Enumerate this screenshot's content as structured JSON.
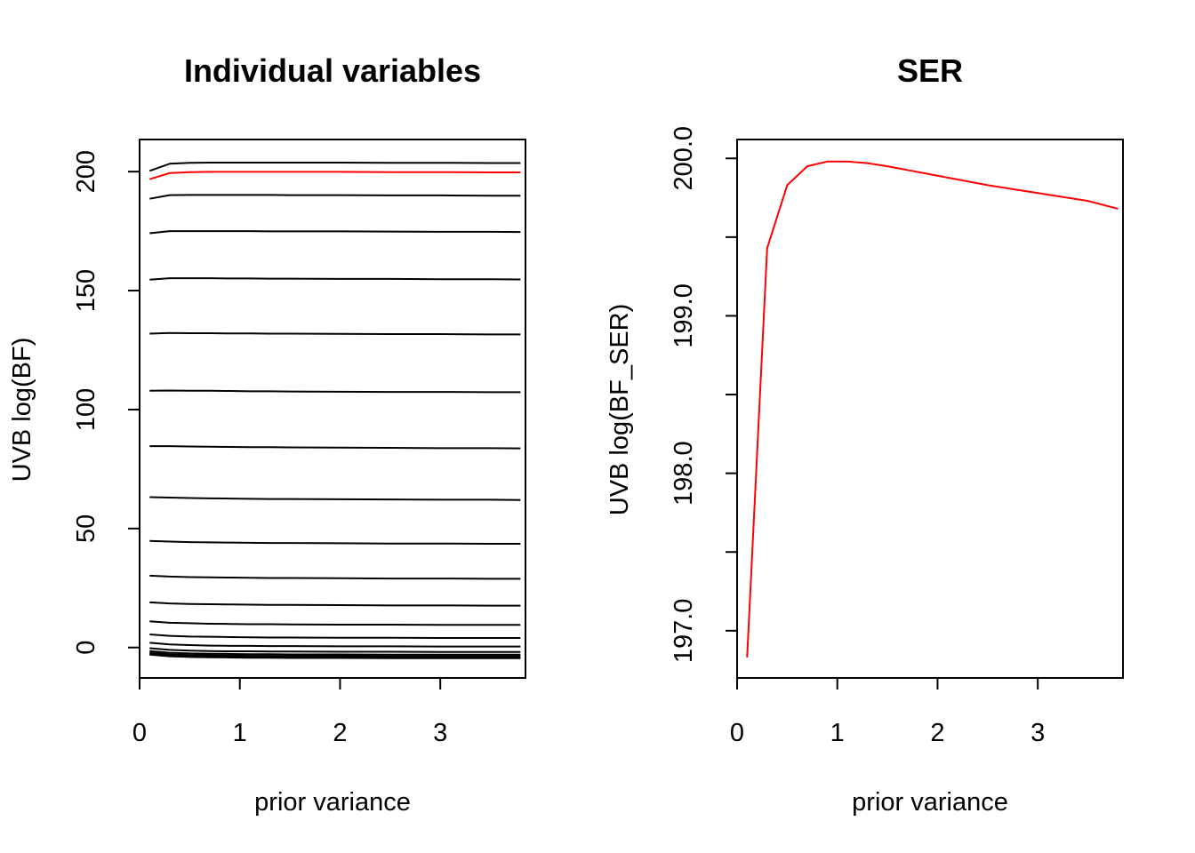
{
  "chart_data": [
    {
      "type": "line",
      "title": "Individual variables",
      "xlabel": "prior variance",
      "ylabel": "UVB log(BF)",
      "xlim": [
        0,
        3.85
      ],
      "ylim": [
        -12.8,
        213.5
      ],
      "xticks": [
        "0",
        "1",
        "2",
        "3"
      ],
      "yticks": [
        "0",
        "50",
        "100",
        "150",
        "200"
      ],
      "grid": false,
      "x": [
        0.1,
        0.3,
        0.5,
        0.7,
        0.9,
        1.1,
        1.3,
        1.5,
        2.0,
        2.5,
        3.0,
        3.5,
        3.8
      ],
      "series": [
        {
          "color": "#000000",
          "values": [
            200.3,
            203.3,
            203.7,
            203.8,
            203.8,
            203.8,
            203.8,
            203.8,
            203.8,
            203.7,
            203.7,
            203.6,
            203.6
          ]
        },
        {
          "color": "#ff0000",
          "values": [
            196.8,
            199.4,
            199.8,
            199.9,
            199.9,
            199.9,
            199.9,
            199.9,
            199.9,
            199.8,
            199.8,
            199.7,
            199.7
          ]
        },
        {
          "color": "#000000",
          "values": [
            188.6,
            190.1,
            190.2,
            190.2,
            190.2,
            190.2,
            190.2,
            190.1,
            190.1,
            190.0,
            190.0,
            189.9,
            189.9
          ]
        },
        {
          "color": "#000000",
          "values": [
            174.1,
            175.0,
            175.0,
            175.0,
            175.0,
            175.0,
            174.9,
            174.9,
            174.9,
            174.8,
            174.7,
            174.7,
            174.6
          ]
        },
        {
          "color": "#000000",
          "values": [
            154.6,
            155.2,
            155.2,
            155.2,
            155.1,
            155.1,
            155.0,
            155.0,
            154.9,
            154.9,
            154.8,
            154.8,
            154.7
          ]
        },
        {
          "color": "#000000",
          "values": [
            131.9,
            132.2,
            132.1,
            132.1,
            132.0,
            132.0,
            131.9,
            131.9,
            131.8,
            131.7,
            131.7,
            131.6,
            131.6
          ]
        },
        {
          "color": "#000000",
          "values": [
            107.9,
            108.0,
            107.9,
            107.9,
            107.8,
            107.7,
            107.7,
            107.6,
            107.5,
            107.4,
            107.4,
            107.3,
            107.3
          ]
        },
        {
          "color": "#000000",
          "values": [
            84.6,
            84.6,
            84.5,
            84.4,
            84.3,
            84.2,
            84.2,
            84.1,
            84.0,
            83.9,
            83.8,
            83.8,
            83.7
          ]
        },
        {
          "color": "#000000",
          "values": [
            63.2,
            63.0,
            62.8,
            62.7,
            62.6,
            62.5,
            62.4,
            62.4,
            62.3,
            62.2,
            62.1,
            62.1,
            62.0
          ]
        },
        {
          "color": "#000000",
          "values": [
            44.8,
            44.5,
            44.3,
            44.2,
            44.1,
            44.0,
            43.9,
            43.9,
            43.8,
            43.7,
            43.7,
            43.6,
            43.6
          ]
        },
        {
          "color": "#000000",
          "values": [
            30.2,
            29.8,
            29.6,
            29.5,
            29.4,
            29.3,
            29.2,
            29.2,
            29.1,
            29.0,
            29.0,
            28.9,
            28.9
          ]
        },
        {
          "color": "#000000",
          "values": [
            19.0,
            18.5,
            18.3,
            18.2,
            18.1,
            18.0,
            17.9,
            17.9,
            17.8,
            17.7,
            17.7,
            17.6,
            17.6
          ]
        },
        {
          "color": "#000000",
          "values": [
            11.0,
            10.4,
            10.2,
            10.0,
            9.9,
            9.8,
            9.8,
            9.7,
            9.6,
            9.6,
            9.5,
            9.5,
            9.5
          ]
        },
        {
          "color": "#000000",
          "values": [
            5.5,
            4.9,
            4.6,
            4.5,
            4.4,
            4.3,
            4.2,
            4.2,
            4.1,
            4.1,
            4.0,
            4.0,
            4.0
          ]
        },
        {
          "color": "#000000",
          "values": [
            2.0,
            1.3,
            1.0,
            0.8,
            0.7,
            0.7,
            0.6,
            0.6,
            0.5,
            0.5,
            0.4,
            0.4,
            0.4
          ]
        },
        {
          "color": "#000000",
          "values": [
            -0.3,
            -1.0,
            -1.3,
            -1.5,
            -1.6,
            -1.6,
            -1.7,
            -1.7,
            -1.8,
            -1.8,
            -1.9,
            -1.9,
            -1.9
          ]
        },
        {
          "color": "#000000",
          "values": [
            -1.5,
            -2.2,
            -2.5,
            -2.6,
            -2.7,
            -2.8,
            -2.8,
            -2.9,
            -2.9,
            -3.0,
            -3.0,
            -3.0,
            -3.0
          ]
        },
        {
          "color": "#000000",
          "values": [
            -2.2,
            -2.9,
            -3.2,
            -3.3,
            -3.4,
            -3.5,
            -3.5,
            -3.6,
            -3.6,
            -3.7,
            -3.7,
            -3.7,
            -3.7
          ]
        },
        {
          "color": "#000000",
          "values": [
            -2.6,
            -3.2,
            -3.5,
            -3.7,
            -3.8,
            -3.9,
            -3.9,
            -3.9,
            -4.0,
            -4.0,
            -4.1,
            -4.1,
            -4.1
          ]
        },
        {
          "color": "#000000",
          "values": [
            -2.8,
            -3.5,
            -3.8,
            -3.9,
            -4.0,
            -4.1,
            -4.1,
            -4.2,
            -4.2,
            -4.3,
            -4.3,
            -4.3,
            -4.3
          ]
        },
        {
          "color": "#000000",
          "values": [
            -3.0,
            -3.7,
            -4.0,
            -4.1,
            -4.2,
            -4.3,
            -4.3,
            -4.4,
            -4.4,
            -4.5,
            -4.5,
            -4.5,
            -4.5
          ]
        }
      ]
    },
    {
      "type": "line",
      "title": "SER",
      "xlabel": "prior variance",
      "ylabel": "UVB log(BF_SER)",
      "xlim": [
        0,
        3.85
      ],
      "ylim": [
        196.7,
        200.12
      ],
      "xticks": [
        "0",
        "1",
        "2",
        "3"
      ],
      "yticks": [
        "197.0",
        "198.0",
        "199.0",
        "200.0"
      ],
      "grid": false,
      "x": [
        0.1,
        0.3,
        0.5,
        0.7,
        0.9,
        1.1,
        1.3,
        1.5,
        2.0,
        2.5,
        3.0,
        3.5,
        3.8
      ],
      "series": [
        {
          "color": "#ff0000",
          "values": [
            196.83,
            199.43,
            199.83,
            199.95,
            199.98,
            199.98,
            199.97,
            199.95,
            199.89,
            199.83,
            199.78,
            199.73,
            199.68
          ]
        }
      ]
    }
  ]
}
